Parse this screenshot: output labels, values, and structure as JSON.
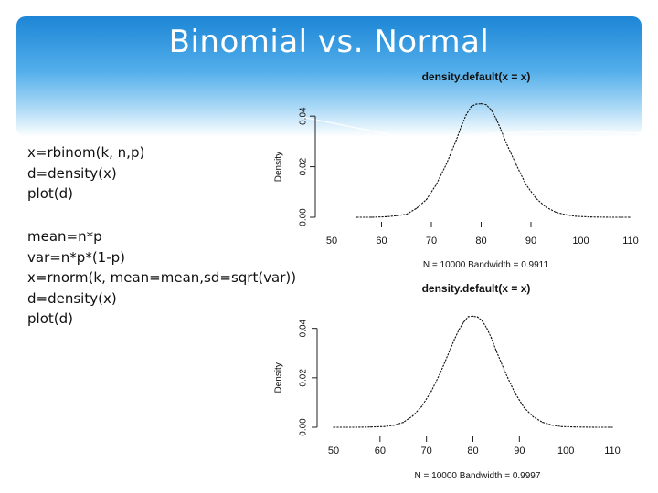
{
  "slide": {
    "title": "Binomial vs. Normal",
    "code_block_1": [
      "x=rbinom(k, n,p)",
      "d=density(x)",
      "plot(d)"
    ],
    "code_block_2": [
      "mean=n*p",
      "var=n*p*(1-p)",
      "x=rnorm(k, mean=mean,sd=sqrt(var))",
      "d=density(x)",
      "plot(d)"
    ]
  },
  "chart_data": [
    {
      "type": "line",
      "title": "density.default(x = x)",
      "xlabel": "N = 10000   Bandwidth = 0.9911",
      "ylabel": "Density",
      "xlim": [
        50,
        110
      ],
      "ylim": [
        0,
        0.048
      ],
      "xticks": [
        50,
        60,
        70,
        80,
        90,
        100,
        110
      ],
      "yticks": [
        0.0,
        0.02,
        0.04
      ],
      "ytick_labels": [
        "0.00",
        "0.02",
        "0.04"
      ],
      "x": [
        55,
        58,
        61,
        63,
        65,
        67,
        69,
        71,
        73,
        75,
        76,
        77,
        78,
        79,
        80,
        81,
        82,
        83,
        84,
        85,
        87,
        89,
        91,
        93,
        95,
        97,
        99,
        102,
        106,
        110
      ],
      "y": [
        0.0,
        0.0,
        0.0002,
        0.0006,
        0.0012,
        0.0035,
        0.007,
        0.013,
        0.021,
        0.0305,
        0.036,
        0.0405,
        0.0438,
        0.0447,
        0.0449,
        0.0445,
        0.0425,
        0.039,
        0.0345,
        0.0295,
        0.021,
        0.013,
        0.0075,
        0.004,
        0.002,
        0.001,
        0.0004,
        0.0001,
        0.0,
        0.0
      ]
    },
    {
      "type": "line",
      "title": "density.default(x = x)",
      "xlabel": "N = 10000   Bandwidth = 0.9997",
      "ylabel": "Density",
      "xlim": [
        50,
        110
      ],
      "ylim": [
        0,
        0.048
      ],
      "xticks": [
        50,
        60,
        70,
        80,
        90,
        100,
        110
      ],
      "yticks": [
        0.0,
        0.02,
        0.04
      ],
      "ytick_labels": [
        "0.00",
        "0.02",
        "0.04"
      ],
      "x": [
        50,
        55,
        58,
        61,
        63,
        65,
        67,
        69,
        71,
        73,
        75,
        76,
        77,
        78,
        79,
        80,
        81,
        82,
        83,
        84,
        85,
        87,
        89,
        91,
        93,
        95,
        97,
        99,
        102,
        106,
        110
      ],
      "y": [
        0.0,
        0.0,
        0.0001,
        0.0003,
        0.0008,
        0.002,
        0.0045,
        0.0085,
        0.0145,
        0.022,
        0.031,
        0.0355,
        0.0395,
        0.0425,
        0.0447,
        0.0449,
        0.0446,
        0.043,
        0.04,
        0.036,
        0.031,
        0.022,
        0.014,
        0.008,
        0.0042,
        0.002,
        0.0009,
        0.0003,
        0.0001,
        0.0,
        0.0
      ]
    }
  ]
}
